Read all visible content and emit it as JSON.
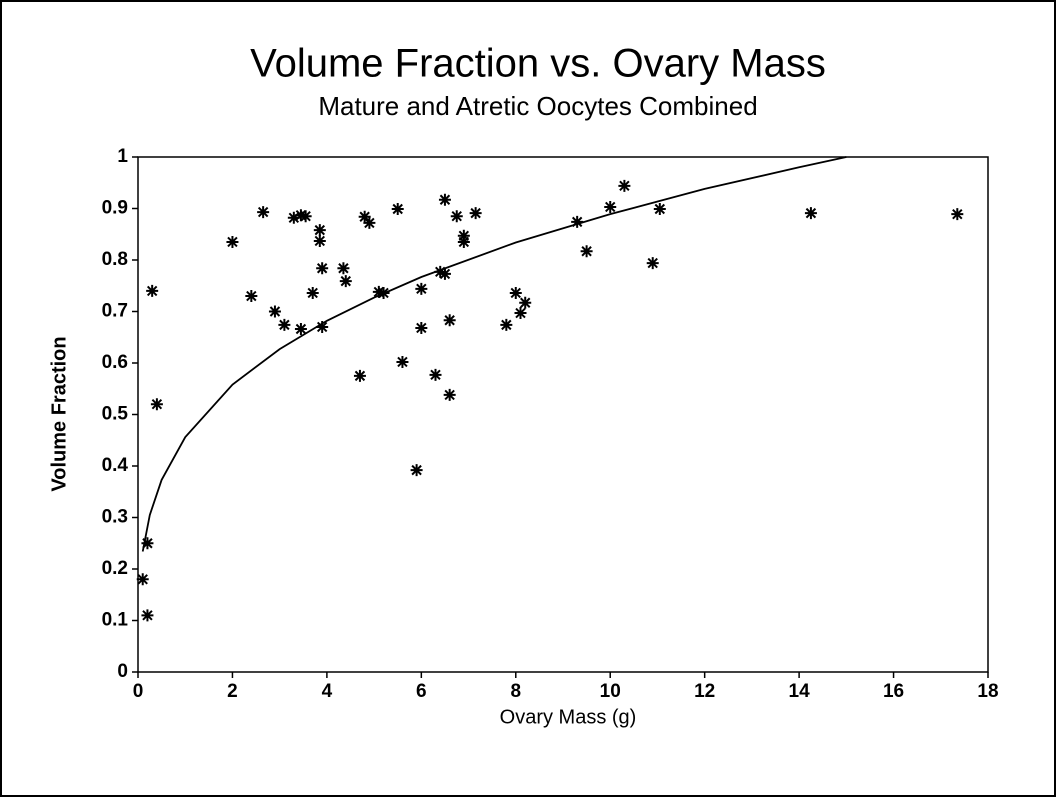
{
  "chart_data": {
    "type": "scatter",
    "title": "Volume Fraction vs. Ovary Mass",
    "subtitle": "Mature and Atretic Oocytes Combined",
    "x_label": "Ovary Mass (g)",
    "y_label": "Volume Fraction",
    "xlim": [
      0,
      18
    ],
    "ylim": [
      0,
      1
    ],
    "xticks": [
      0,
      2,
      4,
      6,
      8,
      10,
      12,
      14,
      16,
      18
    ],
    "yticks": [
      0,
      0.1,
      0.2,
      0.3,
      0.4,
      0.5,
      0.6,
      0.7,
      0.8,
      0.9,
      1
    ],
    "grid": false,
    "color": "#000000",
    "x": [
      0.1,
      0.2,
      0.2,
      0.3,
      0.4,
      2.0,
      2.4,
      2.65,
      2.9,
      3.1,
      3.3,
      3.45,
      3.55,
      3.45,
      3.7,
      3.85,
      3.85,
      3.9,
      3.9,
      4.35,
      4.4,
      4.7,
      4.8,
      4.9,
      5.1,
      5.2,
      5.5,
      5.6,
      5.9,
      6.0,
      6.0,
      6.3,
      6.4,
      6.5,
      6.5,
      6.6,
      6.6,
      6.75,
      6.9,
      6.9,
      7.15,
      7.8,
      8.0,
      8.1,
      8.2,
      9.3,
      9.5,
      10.0,
      10.3,
      10.9,
      11.05,
      14.25,
      17.35
    ],
    "values": [
      0.18,
      0.25,
      0.11,
      0.74,
      0.52,
      0.835,
      0.73,
      0.893,
      0.7,
      0.674,
      0.882,
      0.887,
      0.885,
      0.666,
      0.736,
      0.858,
      0.837,
      0.784,
      0.67,
      0.784,
      0.759,
      0.575,
      0.884,
      0.872,
      0.738,
      0.736,
      0.899,
      0.602,
      0.392,
      0.744,
      0.668,
      0.577,
      0.777,
      0.773,
      0.917,
      0.538,
      0.683,
      0.885,
      0.847,
      0.835,
      0.891,
      0.674,
      0.736,
      0.697,
      0.717,
      0.874,
      0.817,
      0.903,
      0.944,
      0.794,
      0.899,
      0.891,
      0.889
    ],
    "fit": {
      "x": [
        0.1,
        0.25,
        0.5,
        1,
        2,
        3,
        4,
        5,
        6,
        8,
        10,
        12,
        14,
        15
      ],
      "values": [
        0.234,
        0.305,
        0.373,
        0.456,
        0.558,
        0.627,
        0.682,
        0.727,
        0.767,
        0.834,
        0.889,
        0.938,
        0.98,
        1.0
      ]
    }
  }
}
